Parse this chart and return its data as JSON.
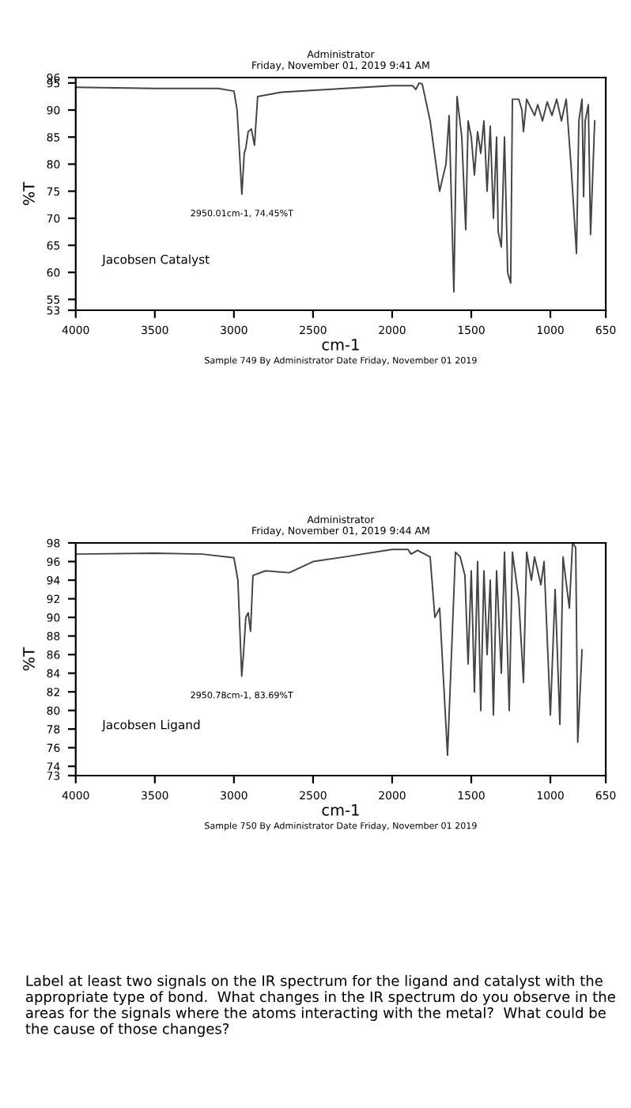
{
  "chart_data": [
    {
      "type": "line",
      "subtitle": "Administrator\nFriday, November 01, 2019 9:41 AM",
      "xlabel": "cm-1",
      "ylabel": "%T",
      "xlim": [
        4000,
        650
      ],
      "xticks": [
        4000,
        3500,
        3000,
        2500,
        2000,
        1500,
        1000,
        650
      ],
      "ylim": [
        53,
        96
      ],
      "yticks": [
        53,
        55,
        60,
        65,
        70,
        75,
        80,
        85,
        90,
        95,
        96
      ],
      "grid": false,
      "series": [
        {
          "color": "#444444",
          "x": [
            4000,
            3500,
            3100,
            3000,
            2980,
            2950.01,
            2935,
            2925,
            2910,
            2890,
            2870,
            2850,
            2700,
            2300,
            2000,
            1870,
            1850,
            1830,
            1810,
            1760,
            1700,
            1660,
            1640,
            1610,
            1590,
            1560,
            1535,
            1520,
            1500,
            1480,
            1460,
            1440,
            1420,
            1400,
            1380,
            1360,
            1340,
            1330,
            1310,
            1290,
            1270,
            1251,
            1240,
            1200,
            1180,
            1170,
            1150,
            1100,
            1080,
            1050,
            1020,
            990,
            960,
            930,
            900,
            870,
            835,
            820,
            800,
            790,
            780,
            760,
            746,
            720
          ],
          "values": [
            94.2,
            94,
            94,
            93.5,
            90,
            74.45,
            82,
            83,
            86,
            86.5,
            83.5,
            92.5,
            93.3,
            94,
            94.5,
            94.5,
            93.8,
            95,
            94.8,
            88,
            75,
            80,
            89,
            56.4,
            92.5,
            85,
            67.9,
            88,
            85,
            78,
            86,
            82,
            88,
            75,
            87,
            70,
            85,
            67.5,
            64.7,
            85,
            60,
            58,
            92,
            92,
            90,
            86,
            92,
            89,
            91,
            88,
            91.5,
            89,
            92,
            88,
            92,
            80,
            63.5,
            88,
            92,
            74,
            88,
            91,
            67,
            88
          ]
        }
      ],
      "annotations": [
        "Jacobsen Catalyst",
        "Sample 749 By Administrator Date Friday, November 01 2019",
        {
          "text": "2950.01cm-1, 74.45%T",
          "x": 2950.01,
          "y": 74.45
        }
      ]
    },
    {
      "type": "line",
      "subtitle": "Administrator\nFriday, November 01, 2019 9:44 AM",
      "xlabel": "cm-1",
      "ylabel": "%T",
      "xlim": [
        4000,
        650
      ],
      "xticks": [
        4000,
        3500,
        3000,
        2500,
        2000,
        1500,
        1000,
        650
      ],
      "ylim": [
        73,
        98
      ],
      "yticks": [
        73,
        74,
        76,
        78,
        80,
        82,
        84,
        86,
        88,
        90,
        92,
        94,
        96,
        98
      ],
      "grid": false,
      "series": [
        {
          "color": "#444444",
          "x": [
            4000,
            3500,
            3200,
            3000,
            2975,
            2950.78,
            2940,
            2925,
            2910,
            2895,
            2880,
            2800,
            2650,
            2500,
            2300,
            2000,
            1900,
            1880,
            1840,
            1760,
            1730,
            1700,
            1650,
            1600,
            1570,
            1540,
            1520,
            1500,
            1480,
            1460,
            1440,
            1420,
            1400,
            1380,
            1360,
            1340,
            1310,
            1290,
            1260,
            1240,
            1200,
            1170,
            1150,
            1120,
            1100,
            1060,
            1040,
            1000,
            970,
            940,
            920,
            880,
            860,
            840,
            827,
            800
          ],
          "values": [
            96.8,
            96.9,
            96.8,
            96.4,
            94,
            83.69,
            86,
            90,
            90.5,
            88.5,
            94.5,
            95,
            94.8,
            96,
            96.5,
            97.3,
            97.3,
            96.8,
            97.2,
            96.5,
            90,
            91,
            75.2,
            97,
            96.5,
            94.5,
            85,
            95,
            82,
            96,
            80,
            95,
            86,
            94,
            79.5,
            95,
            84,
            97,
            80,
            97,
            92,
            83,
            97,
            94,
            96.5,
            93.5,
            96,
            79.5,
            93,
            78.5,
            96.5,
            91,
            98,
            97.5,
            76.6,
            86.5
          ]
        }
      ],
      "annotations": [
        "Jacobsen Ligand",
        "Sample 750 By Administrator Date Friday, November 01 2019",
        {
          "text": "2950.78cm-1, 83.69%T",
          "x": 2950.78,
          "y": 83.69
        },
        "Label at least two signals on the IR spectrum for the ligand and catalyst with the appropriate type of bond.  What changes in the IR spectrum do you observe in the areas for the signals where the atoms interacting with the metal?  What could be the cause of those changes?"
      ]
    }
  ]
}
